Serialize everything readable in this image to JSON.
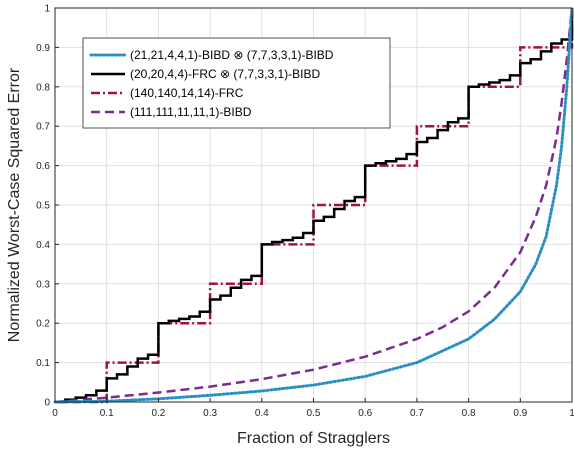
{
  "chart_data": {
    "type": "line",
    "title": "",
    "xlabel": "Fraction of Stragglers",
    "ylabel": "Normalized Worst-Case Squared Error",
    "xlim": [
      0,
      1
    ],
    "ylim": [
      0,
      1
    ],
    "grid": true,
    "legend_position": "top-left",
    "x_ticks": [
      "0",
      "0.1",
      "0.2",
      "0.3",
      "0.4",
      "0.5",
      "0.6",
      "0.7",
      "0.8",
      "0.9",
      "1"
    ],
    "y_ticks": [
      "0",
      "0.1",
      "0.2",
      "0.3",
      "0.4",
      "0.5",
      "0.6",
      "0.7",
      "0.8",
      "0.9",
      "1"
    ],
    "series": [
      {
        "name": "(21,21,4,4,1)-BIBD ⊗ (7,7,3,3,1)-BIBD",
        "color": "#2a8fc4",
        "style": "dotted",
        "x": [
          0,
          0.1,
          0.2,
          0.3,
          0.4,
          0.5,
          0.6,
          0.7,
          0.75,
          0.8,
          0.85,
          0.9,
          0.93,
          0.95,
          0.97,
          0.98,
          0.99,
          1.0
        ],
        "y": [
          0,
          0.002,
          0.008,
          0.017,
          0.028,
          0.043,
          0.065,
          0.1,
          0.13,
          0.16,
          0.21,
          0.28,
          0.35,
          0.42,
          0.55,
          0.65,
          0.8,
          1.0
        ]
      },
      {
        "name": "(20,20,4,4)-FRC ⊗ (7,7,3,3,1)-BIBD",
        "color": "#000000",
        "style": "solid",
        "x": [
          0,
          0.02,
          0.02,
          0.04,
          0.04,
          0.06,
          0.06,
          0.08,
          0.08,
          0.1,
          0.1,
          0.12,
          0.12,
          0.14,
          0.14,
          0.16,
          0.16,
          0.18,
          0.18,
          0.2,
          0.2,
          0.22,
          0.22,
          0.24,
          0.24,
          0.26,
          0.26,
          0.28,
          0.28,
          0.3,
          0.3,
          0.32,
          0.32,
          0.34,
          0.34,
          0.36,
          0.36,
          0.38,
          0.38,
          0.4,
          0.4,
          0.42,
          0.42,
          0.44,
          0.44,
          0.46,
          0.46,
          0.48,
          0.48,
          0.5,
          0.5,
          0.52,
          0.52,
          0.54,
          0.54,
          0.56,
          0.56,
          0.58,
          0.58,
          0.6,
          0.6,
          0.62,
          0.62,
          0.64,
          0.64,
          0.66,
          0.66,
          0.68,
          0.68,
          0.7,
          0.7,
          0.72,
          0.72,
          0.74,
          0.74,
          0.76,
          0.76,
          0.78,
          0.78,
          0.8,
          0.8,
          0.82,
          0.82,
          0.84,
          0.84,
          0.86,
          0.86,
          0.88,
          0.88,
          0.9,
          0.9,
          0.92,
          0.92,
          0.94,
          0.94,
          0.96,
          0.96,
          0.98,
          0.98,
          1.0,
          1.0
        ],
        "y": [
          0,
          0,
          0.006,
          0.006,
          0.011,
          0.011,
          0.017,
          0.017,
          0.029,
          0.029,
          0.06,
          0.06,
          0.07,
          0.07,
          0.09,
          0.09,
          0.11,
          0.11,
          0.12,
          0.12,
          0.2,
          0.2,
          0.206,
          0.206,
          0.211,
          0.211,
          0.217,
          0.217,
          0.229,
          0.229,
          0.26,
          0.26,
          0.27,
          0.27,
          0.29,
          0.29,
          0.31,
          0.31,
          0.32,
          0.32,
          0.4,
          0.4,
          0.406,
          0.406,
          0.411,
          0.411,
          0.417,
          0.417,
          0.429,
          0.429,
          0.46,
          0.46,
          0.47,
          0.47,
          0.49,
          0.49,
          0.51,
          0.51,
          0.52,
          0.52,
          0.6,
          0.6,
          0.606,
          0.606,
          0.611,
          0.611,
          0.617,
          0.617,
          0.629,
          0.629,
          0.66,
          0.66,
          0.67,
          0.67,
          0.69,
          0.69,
          0.71,
          0.71,
          0.72,
          0.72,
          0.8,
          0.8,
          0.806,
          0.806,
          0.811,
          0.811,
          0.817,
          0.817,
          0.829,
          0.829,
          0.86,
          0.86,
          0.87,
          0.87,
          0.89,
          0.89,
          0.91,
          0.91,
          0.92,
          0.92,
          1.0
        ]
      },
      {
        "name": "(140,140,14,14)-FRC",
        "color": "#a3143a",
        "style": "dashdot",
        "x": [
          0,
          0.1,
          0.1,
          0.2,
          0.2,
          0.3,
          0.3,
          0.4,
          0.4,
          0.5,
          0.5,
          0.6,
          0.6,
          0.7,
          0.7,
          0.8,
          0.8,
          0.9,
          0.9,
          1.0,
          1.0
        ],
        "y": [
          0,
          0,
          0.1,
          0.1,
          0.2,
          0.2,
          0.3,
          0.3,
          0.4,
          0.4,
          0.5,
          0.5,
          0.6,
          0.6,
          0.7,
          0.7,
          0.8,
          0.8,
          0.9,
          0.9,
          1.0
        ]
      },
      {
        "name": "(111,111,11,11,1)-BIBD",
        "color": "#7b2d8e",
        "style": "dashed",
        "x": [
          0,
          0.1,
          0.2,
          0.3,
          0.4,
          0.5,
          0.6,
          0.7,
          0.75,
          0.8,
          0.85,
          0.9,
          0.93,
          0.95,
          0.97,
          0.98,
          0.99,
          1.0
        ],
        "y": [
          0,
          0.011,
          0.024,
          0.039,
          0.058,
          0.082,
          0.115,
          0.16,
          0.19,
          0.23,
          0.29,
          0.38,
          0.47,
          0.55,
          0.67,
          0.76,
          0.87,
          1.0
        ]
      }
    ]
  }
}
